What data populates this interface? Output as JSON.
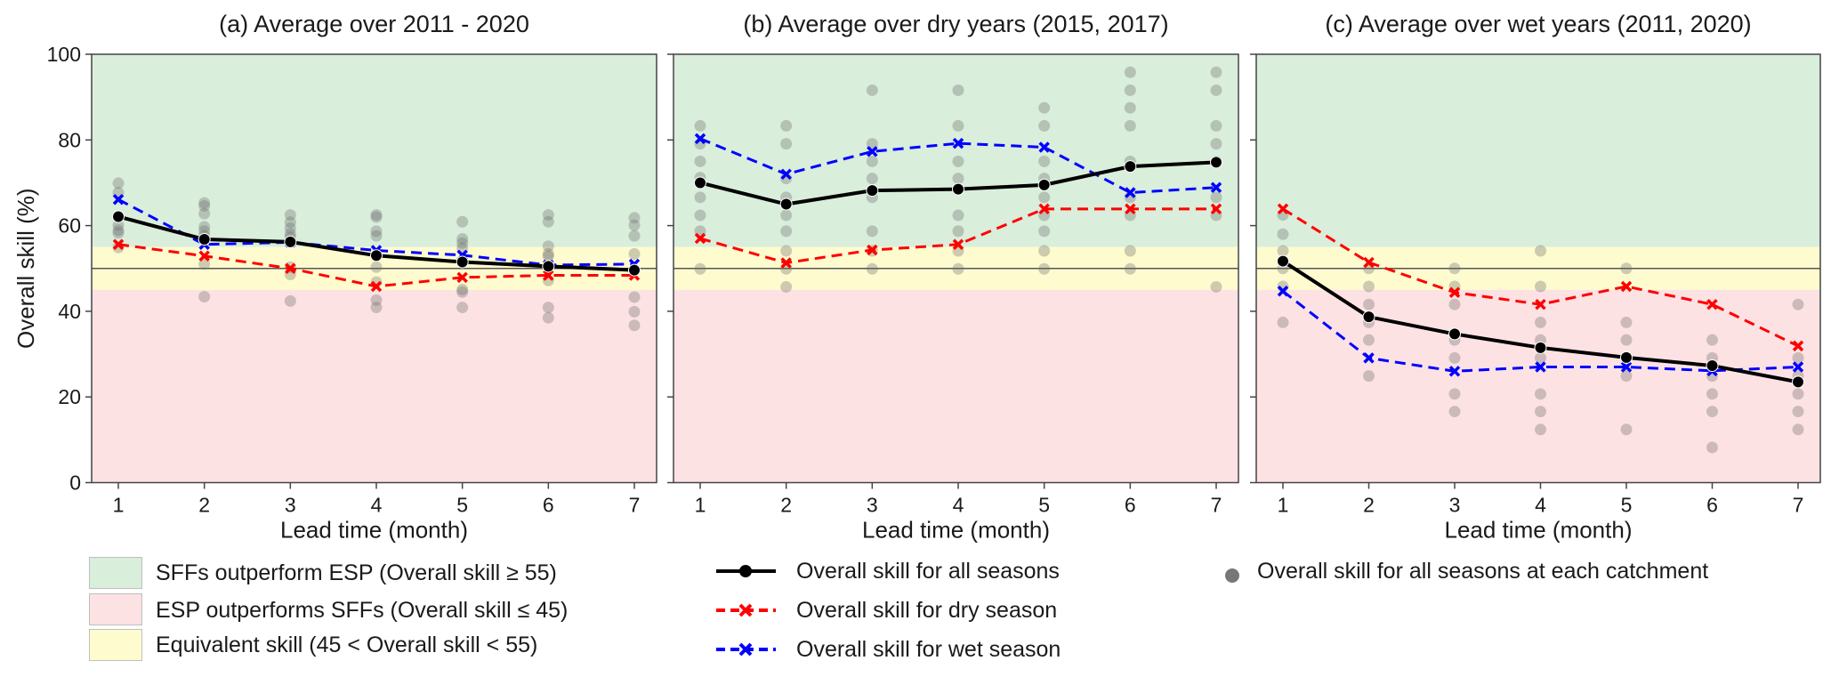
{
  "colors": {
    "good_band": "#d9eedb",
    "bad_band": "#fde2e4",
    "equal_band": "#fefccf",
    "all_seasons": "#000000",
    "dry_season": "#ff0000",
    "wet_season": "#0000ff",
    "catchment": "#707070"
  },
  "chart_data": [
    {
      "type": "line",
      "title": "(a) Average over 2011 - 2020",
      "xlabel": "Lead time (month)",
      "ylabel": "Overall skill (%)",
      "ylim": [
        0,
        100
      ],
      "yticks": [
        0,
        20,
        40,
        60,
        80,
        100
      ],
      "x": [
        1,
        2,
        3,
        4,
        5,
        6,
        7
      ],
      "bands": [
        {
          "name": "SFFs outperform ESP",
          "from": 55,
          "to": 100
        },
        {
          "name": "Equivalent skill",
          "from": 45,
          "to": 55
        },
        {
          "name": "ESP outperforms SFFs",
          "from": 0,
          "to": 45
        }
      ],
      "reference_line": 50,
      "series": [
        {
          "name": "Overall skill for all seasons",
          "values": [
            62.1,
            56.8,
            56.2,
            53.0,
            51.5,
            50.5,
            49.6
          ]
        },
        {
          "name": "Overall skill for dry season",
          "values": [
            55.6,
            52.9,
            50.0,
            45.8,
            47.9,
            48.4,
            48.4
          ]
        },
        {
          "name": "Overall skill for wet season",
          "values": [
            66.1,
            55.6,
            56.1,
            54.2,
            53.1,
            50.8,
            51.0
          ]
        }
      ],
      "catchments": [
        [
          69.9,
          67.7,
          60.1,
          58.9,
          58.3,
          54.9
        ],
        [
          65.3,
          64.6,
          62.8,
          59.7,
          58.7,
          57.6,
          51.0,
          43.4
        ],
        [
          62.5,
          60.8,
          59.4,
          58.1,
          57.3,
          50.3,
          48.6,
          42.4
        ],
        [
          62.5,
          62.0,
          58.7,
          57.6,
          50.3,
          46.8,
          42.6,
          40.9
        ],
        [
          60.9,
          56.9,
          55.9,
          54.7,
          45.1,
          44.5,
          40.9
        ],
        [
          62.5,
          60.9,
          55.2,
          53.4,
          52.8,
          47.2,
          40.9,
          38.5
        ],
        [
          61.8,
          60.1,
          57.6,
          53.4,
          43.3,
          39.9,
          36.7
        ]
      ]
    },
    {
      "type": "line",
      "title": "(b) Average over dry years (2015, 2017)",
      "xlabel": "Lead time (month)",
      "ylabel": "",
      "ylim": [
        0,
        100
      ],
      "yticks": [
        0,
        20,
        40,
        60,
        80,
        100
      ],
      "x": [
        1,
        2,
        3,
        4,
        5,
        6,
        7
      ],
      "reference_line": 50,
      "series": [
        {
          "name": "Overall skill for all seasons",
          "values": [
            70.0,
            65.0,
            68.2,
            68.5,
            69.5,
            73.8,
            74.8
          ]
        },
        {
          "name": "Overall skill for dry season",
          "values": [
            57.0,
            51.3,
            54.3,
            55.6,
            63.9,
            63.9,
            63.9
          ]
        },
        {
          "name": "Overall skill for wet season",
          "values": [
            80.3,
            72.0,
            77.3,
            79.2,
            78.3,
            67.7,
            68.9
          ]
        }
      ],
      "catchments": [
        [
          83.3,
          79.1,
          75.0,
          71.2,
          66.6,
          62.4,
          58.7,
          49.9
        ],
        [
          83.3,
          79.1,
          71.0,
          66.6,
          62.4,
          58.7,
          54.1,
          49.9,
          45.7
        ],
        [
          91.6,
          79.1,
          75.0,
          71.0,
          66.6,
          58.7,
          54.1,
          49.9
        ],
        [
          91.6,
          83.3,
          75.0,
          71.0,
          62.4,
          58.7,
          54.1,
          49.9
        ],
        [
          87.5,
          83.3,
          75.0,
          71.0,
          66.6,
          62.4,
          58.7,
          54.1,
          49.9
        ],
        [
          95.8,
          91.6,
          87.5,
          83.3,
          75.0,
          66.6,
          62.4,
          54.1,
          49.9
        ],
        [
          95.8,
          91.6,
          83.3,
          79.1,
          75.0,
          66.6,
          62.4,
          45.7
        ]
      ]
    },
    {
      "type": "line",
      "title": "(c) Average over wet years (2011, 2020)",
      "xlabel": "Lead time (month)",
      "ylabel": "",
      "ylim": [
        0,
        100
      ],
      "yticks": [
        0,
        20,
        40,
        60,
        80,
        100
      ],
      "x": [
        1,
        2,
        3,
        4,
        5,
        6,
        7
      ],
      "reference_line": 50,
      "series": [
        {
          "name": "Overall skill for all seasons",
          "values": [
            51.7,
            38.7,
            34.7,
            31.5,
            29.2,
            27.3,
            23.5
          ]
        },
        {
          "name": "Overall skill for dry season",
          "values": [
            63.9,
            51.4,
            44.4,
            41.6,
            45.8,
            41.6,
            31.9
          ]
        },
        {
          "name": "Overall skill for wet season",
          "values": [
            44.7,
            29.1,
            26.0,
            27.0,
            27.0,
            26.1,
            27.0
          ]
        }
      ],
      "catchments": [
        [
          62.5,
          58.0,
          54.1,
          50.0,
          45.8,
          37.4
        ],
        [
          50.0,
          45.8,
          41.6,
          37.4,
          33.3,
          24.9
        ],
        [
          50.0,
          45.8,
          41.6,
          33.3,
          29.1,
          20.7,
          16.6
        ],
        [
          54.1,
          45.8,
          37.4,
          33.3,
          29.1,
          20.7,
          16.6,
          12.4
        ],
        [
          50.0,
          37.4,
          33.3,
          24.9,
          12.4
        ],
        [
          33.3,
          29.1,
          24.9,
          20.7,
          16.6,
          8.2
        ],
        [
          41.6,
          29.1,
          24.9,
          20.7,
          16.6,
          12.4
        ]
      ]
    }
  ],
  "legend": {
    "bands": [
      {
        "label": "SFFs outperform ESP (Overall skill ≥ 55)"
      },
      {
        "label": "ESP outperforms SFFs (Overall skill ≤ 45)"
      },
      {
        "label": "Equivalent skill (45 < Overall skill < 55)"
      }
    ],
    "lines": [
      {
        "label": "Overall skill for all seasons"
      },
      {
        "label": "Overall skill for dry season"
      },
      {
        "label": "Overall skill for wet season"
      }
    ],
    "points": [
      {
        "label": "Overall skill for all seasons at each catchment"
      }
    ]
  }
}
